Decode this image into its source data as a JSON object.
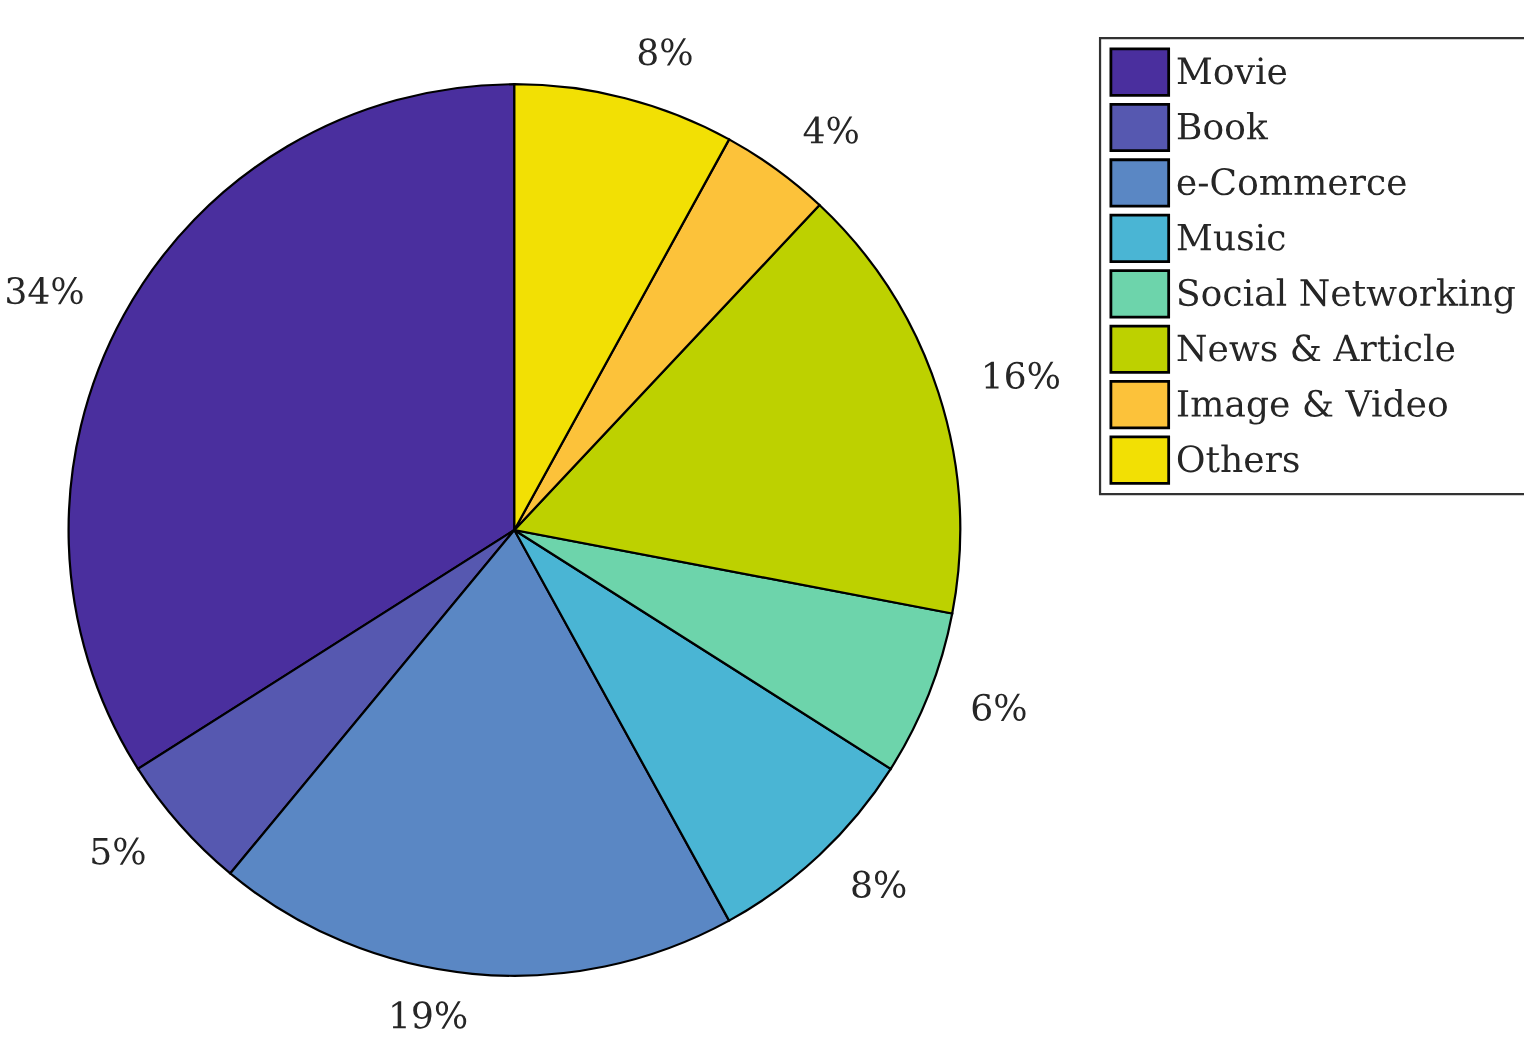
{
  "chart_data": {
    "type": "pie",
    "categories": [
      "Movie",
      "Book",
      "e-Commerce",
      "Music",
      "Social Networking",
      "News & Article",
      "Image & Video",
      "Others"
    ],
    "values": [
      34,
      5,
      19,
      8,
      6,
      16,
      4,
      8
    ],
    "value_labels": [
      "34%",
      "5%",
      "19%",
      "8%",
      "6%",
      "16%",
      "4%",
      "8%"
    ],
    "colors": [
      "#4a2f9e",
      "#5658b0",
      "#5a87c4",
      "#4ab5d4",
      "#6dd4ab",
      "#bdd100",
      "#fcc23a",
      "#f2e004"
    ],
    "legend": "top right"
  }
}
